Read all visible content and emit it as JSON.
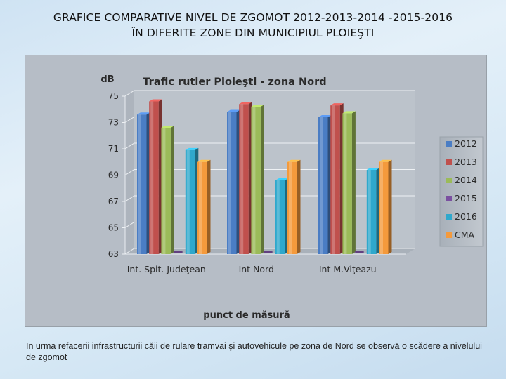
{
  "slide": {
    "title_line1": "GRAFICE COMPARATIVE NIVEL DE ZGOMOT  2012-2013-2014 -2015-2016",
    "title_line2": "ÎN DIFERITE ZONE  DIN MUNICIPIUL  PLOIEŞTI",
    "caption": "In urma refacerii infrastructurii căii de rulare tramvai şi autovehicule pe zona de Nord se observă o scădere a nivelului de zgomot"
  },
  "chart_data": {
    "type": "bar",
    "title": "Trafic rutier Ploieşti - zona Nord",
    "ylabel": "dB",
    "xlabel": "punct de măsură",
    "ylim": [
      63,
      75
    ],
    "yticks": [
      63,
      65,
      67,
      69,
      71,
      73,
      75
    ],
    "grid": true,
    "legend": "right",
    "categories": [
      "Int. Spit. Judeţean",
      "Int Nord",
      "Int M.Viţeazu"
    ],
    "series": [
      {
        "name": "2012",
        "color": "#4a7dc4",
        "values": [
          73.6,
          73.8,
          73.4
        ]
      },
      {
        "name": "2013",
        "color": "#c0504d",
        "values": [
          74.6,
          74.4,
          74.3
        ]
      },
      {
        "name": "2014",
        "color": "#9bbb59",
        "values": [
          72.6,
          74.2,
          73.7
        ]
      },
      {
        "name": "2015",
        "color": "#7a50a0",
        "values": [
          null,
          null,
          null
        ]
      },
      {
        "name": "2016",
        "color": "#2fa8cc",
        "values": [
          70.9,
          68.6,
          69.4
        ]
      },
      {
        "name": "CMA",
        "color": "#f49a3c",
        "values": [
          70,
          70,
          70
        ]
      }
    ]
  }
}
